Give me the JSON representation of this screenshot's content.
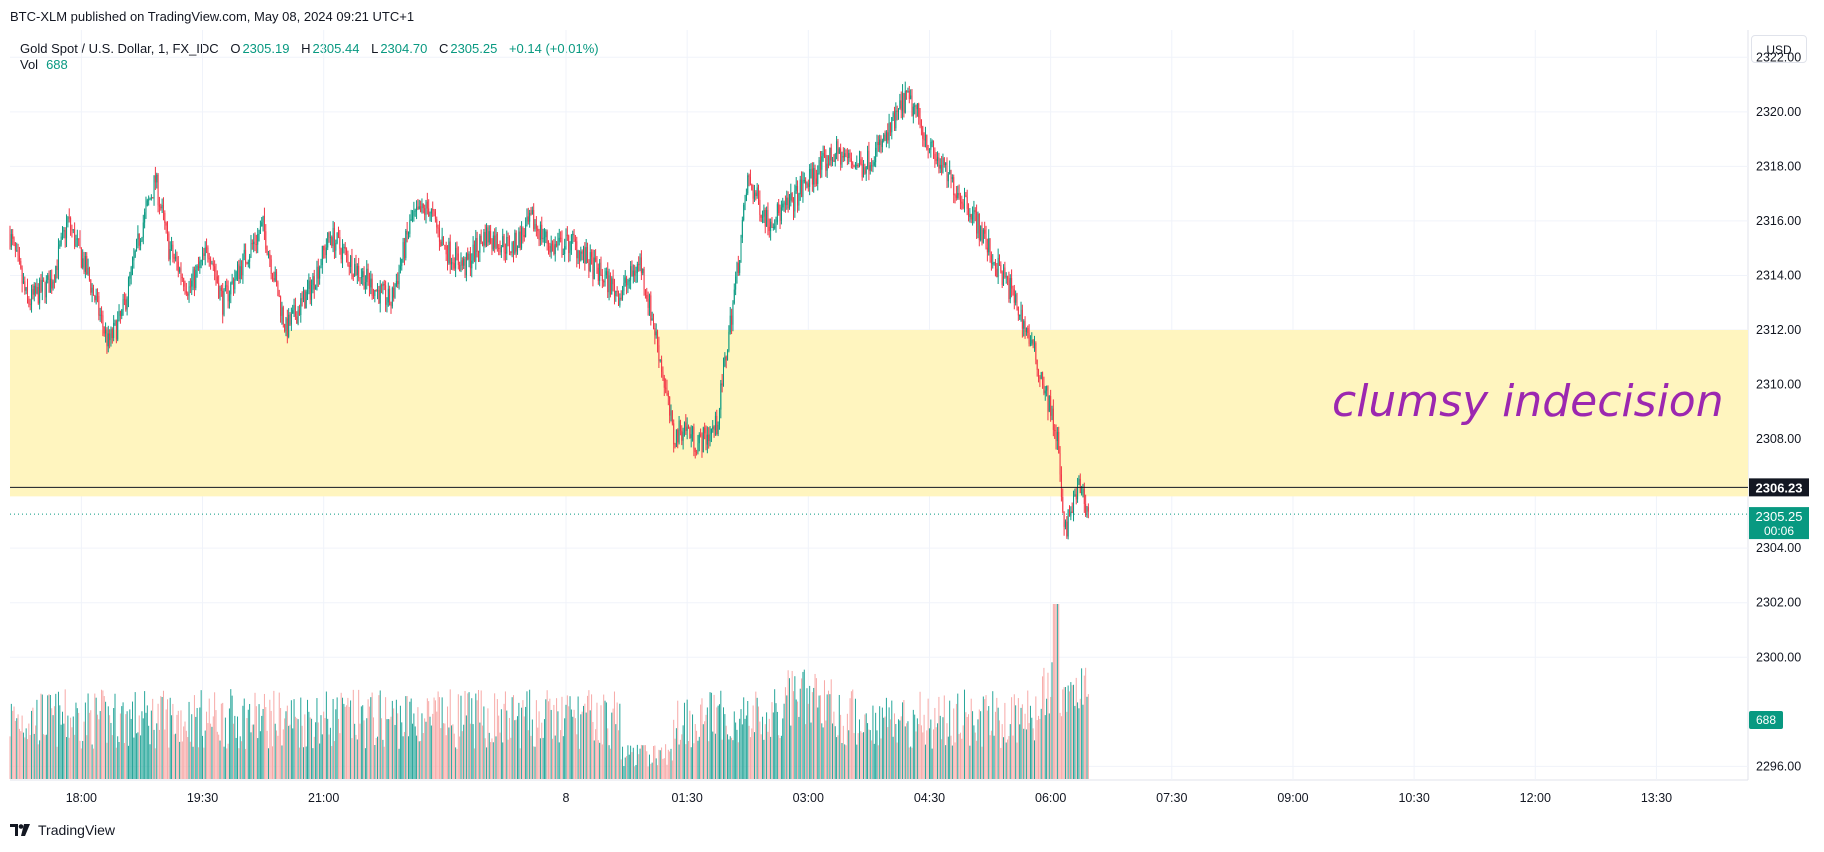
{
  "header": {
    "published_line": "BTC-XLM published on TradingView.com, May 08, 2024 09:21 UTC+1"
  },
  "legend": {
    "symbol": "Gold Spot / U.S. Dollar, 1, FX_IDC",
    "open_label": "O",
    "open": "2305.19",
    "high_label": "H",
    "high": "2305.44",
    "low_label": "L",
    "low": "2304.70",
    "close_label": "C",
    "close": "2305.25",
    "change": "+0.14 (+0.01%)",
    "vol_label": "Vol",
    "vol": "688"
  },
  "currency_button": "USD",
  "footer": {
    "brand": "TradingView"
  },
  "colors": {
    "up": "#089981",
    "down": "#f23645",
    "vol_up": "#26a69a",
    "vol_down": "#f7a9a7",
    "zone_fill": "#fff5bf",
    "annotation": "#9c27b0",
    "line_marker": "#131722"
  },
  "chart_data": {
    "type": "candlestick",
    "symbol": "Gold Spot / U.S. Dollar",
    "timeframe": "1",
    "y_axis": {
      "ticks": [
        "2322.00",
        "2320.00",
        "2318.00",
        "2316.00",
        "2314.00",
        "2312.00",
        "2310.00",
        "2308.00",
        "2304.00",
        "2302.00",
        "2300.00",
        "2296.00"
      ],
      "range": [
        2295.5,
        2323.0
      ]
    },
    "x_axis": {
      "ticks": [
        "18:00",
        "19:30",
        "21:00",
        "8",
        "01:30",
        "03:00",
        "04:30",
        "06:00",
        "07:30",
        "09:00",
        "10:30",
        "12:00",
        "13:30"
      ],
      "tick_minutes": [
        1080,
        1170,
        1260,
        1440,
        1530,
        1620,
        1710,
        1800,
        1890,
        1980,
        2070,
        2160,
        2250
      ],
      "range_minutes": [
        1027,
        2318
      ]
    },
    "price_path": [
      [
        1027,
        2315.5
      ],
      [
        1040,
        2313.0
      ],
      [
        1058,
        2313.8
      ],
      [
        1070,
        2316.0
      ],
      [
        1085,
        2314.0
      ],
      [
        1100,
        2311.5
      ],
      [
        1110,
        2312.5
      ],
      [
        1125,
        2315.8
      ],
      [
        1135,
        2317.5
      ],
      [
        1145,
        2315.0
      ],
      [
        1160,
        2313.5
      ],
      [
        1175,
        2315.0
      ],
      [
        1185,
        2313.0
      ],
      [
        1200,
        2314.5
      ],
      [
        1215,
        2315.8
      ],
      [
        1232,
        2312.0
      ],
      [
        1250,
        2313.5
      ],
      [
        1265,
        2315.5
      ],
      [
        1280,
        2314.5
      ],
      [
        1298,
        2313.5
      ],
      [
        1310,
        2313.0
      ],
      [
        1325,
        2316.0
      ],
      [
        1338,
        2316.5
      ],
      [
        1350,
        2315.0
      ],
      [
        1365,
        2314.3
      ],
      [
        1380,
        2315.5
      ],
      [
        1400,
        2315.0
      ],
      [
        1415,
        2316.0
      ],
      [
        1430,
        2315.0
      ],
      [
        1445,
        2315.2
      ],
      [
        1460,
        2314.3
      ],
      [
        1480,
        2313.3
      ],
      [
        1495,
        2314.5
      ],
      [
        1508,
        2311.5
      ],
      [
        1515,
        2309.5
      ],
      [
        1520,
        2308.0
      ],
      [
        1528,
        2308.5
      ],
      [
        1538,
        2307.8
      ],
      [
        1552,
        2308.5
      ],
      [
        1560,
        2311.5
      ],
      [
        1568,
        2314.5
      ],
      [
        1575,
        2317.5
      ],
      [
        1590,
        2316.0
      ],
      [
        1605,
        2316.5
      ],
      [
        1620,
        2317.5
      ],
      [
        1640,
        2318.5
      ],
      [
        1660,
        2318.0
      ],
      [
        1678,
        2319.0
      ],
      [
        1692,
        2320.5
      ],
      [
        1700,
        2320.0
      ],
      [
        1712,
        2318.5
      ],
      [
        1725,
        2317.5
      ],
      [
        1740,
        2316.5
      ],
      [
        1758,
        2314.5
      ],
      [
        1770,
        2313.5
      ],
      [
        1782,
        2312.0
      ],
      [
        1795,
        2310.0
      ],
      [
        1805,
        2308.0
      ],
      [
        1810,
        2304.5
      ],
      [
        1816,
        2305.5
      ],
      [
        1822,
        2306.3
      ],
      [
        1828,
        2305.25
      ]
    ],
    "key_levels": {
      "zone_top": 2312.0,
      "zone_bottom": 2305.9,
      "horizontal_line": 2306.23,
      "last_price": 2305.25
    },
    "price_labels": {
      "line_price": "2306.23",
      "last_price": "2305.25",
      "countdown": "00:06",
      "vol_tag": "688"
    },
    "annotation": "clumsy indecision",
    "volume": {
      "last": 688,
      "spike_minute": 1804,
      "spike_value": 2300
    }
  }
}
